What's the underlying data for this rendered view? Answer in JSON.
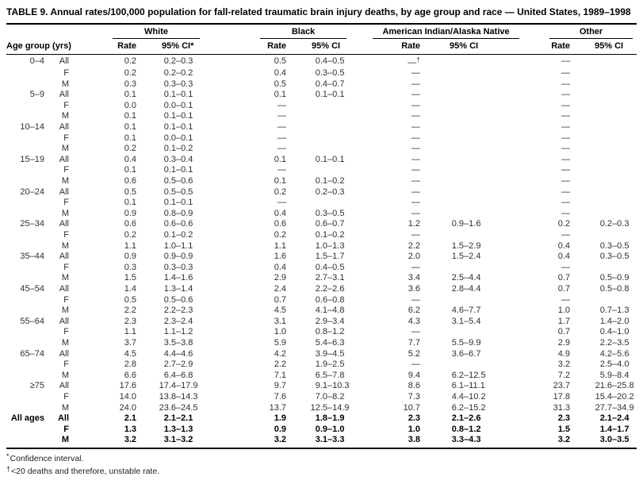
{
  "title": "TABLE 9. Annual rates/100,000 population for fall-related traumatic brain injury deaths, by age group and race — United States, 1989–1998",
  "table": {
    "row_header": "Age group (yrs)",
    "missing_symbol": "—",
    "groups": [
      {
        "id": "white",
        "label": "White",
        "rate_label": "Rate",
        "ci_label": "95% CI*"
      },
      {
        "id": "black",
        "label": "Black",
        "rate_label": "Rate",
        "ci_label": "95% CI"
      },
      {
        "id": "aian",
        "label": "American Indian/Alaska Native",
        "rate_label": "Rate",
        "ci_label": "95% CI"
      },
      {
        "id": "other",
        "label": "Other",
        "rate_label": "Rate",
        "ci_label": "95% CI"
      }
    ],
    "rows": [
      {
        "age": "0–4",
        "sex": "All",
        "white": {
          "rate": "0.2",
          "ci": "0.2–0.3"
        },
        "black": {
          "rate": "0.5",
          "ci": "0.4–0.5"
        },
        "aian": {
          "rate": "—†",
          "ci": ""
        },
        "other": {
          "rate": "—",
          "ci": ""
        }
      },
      {
        "age": "",
        "sex": "F",
        "white": {
          "rate": "0.2",
          "ci": "0.2–0.2"
        },
        "black": {
          "rate": "0.4",
          "ci": "0.3–0.5"
        },
        "aian": {
          "rate": "—",
          "ci": ""
        },
        "other": {
          "rate": "—",
          "ci": ""
        }
      },
      {
        "age": "",
        "sex": "M",
        "white": {
          "rate": "0.3",
          "ci": "0.3–0.3"
        },
        "black": {
          "rate": "0.5",
          "ci": "0.4–0.7"
        },
        "aian": {
          "rate": "—",
          "ci": ""
        },
        "other": {
          "rate": "—",
          "ci": ""
        }
      },
      {
        "age": "5–9",
        "sex": "All",
        "white": {
          "rate": "0.1",
          "ci": "0.1–0.1"
        },
        "black": {
          "rate": "0.1",
          "ci": "0.1–0.1"
        },
        "aian": {
          "rate": "—",
          "ci": ""
        },
        "other": {
          "rate": "—",
          "ci": ""
        }
      },
      {
        "age": "",
        "sex": "F",
        "white": {
          "rate": "0.0",
          "ci": "0.0–0.1"
        },
        "black": {
          "rate": "—",
          "ci": ""
        },
        "aian": {
          "rate": "—",
          "ci": ""
        },
        "other": {
          "rate": "—",
          "ci": ""
        }
      },
      {
        "age": "",
        "sex": "M",
        "white": {
          "rate": "0.1",
          "ci": "0.1–0.1"
        },
        "black": {
          "rate": "—",
          "ci": ""
        },
        "aian": {
          "rate": "—",
          "ci": ""
        },
        "other": {
          "rate": "—",
          "ci": ""
        }
      },
      {
        "age": "10–14",
        "sex": "All",
        "white": {
          "rate": "0.1",
          "ci": "0.1–0.1"
        },
        "black": {
          "rate": "—",
          "ci": ""
        },
        "aian": {
          "rate": "—",
          "ci": ""
        },
        "other": {
          "rate": "—",
          "ci": ""
        }
      },
      {
        "age": "",
        "sex": "F",
        "white": {
          "rate": "0.1",
          "ci": "0.0–0.1"
        },
        "black": {
          "rate": "—",
          "ci": ""
        },
        "aian": {
          "rate": "—",
          "ci": ""
        },
        "other": {
          "rate": "—",
          "ci": ""
        }
      },
      {
        "age": "",
        "sex": "M",
        "white": {
          "rate": "0.2",
          "ci": "0.1–0.2"
        },
        "black": {
          "rate": "—",
          "ci": ""
        },
        "aian": {
          "rate": "—",
          "ci": ""
        },
        "other": {
          "rate": "—",
          "ci": ""
        }
      },
      {
        "age": "15–19",
        "sex": "All",
        "white": {
          "rate": "0.4",
          "ci": "0.3–0.4"
        },
        "black": {
          "rate": "0.1",
          "ci": "0.1–0.1"
        },
        "aian": {
          "rate": "—",
          "ci": ""
        },
        "other": {
          "rate": "—",
          "ci": ""
        }
      },
      {
        "age": "",
        "sex": "F",
        "white": {
          "rate": "0.1",
          "ci": "0.1–0.1"
        },
        "black": {
          "rate": "—",
          "ci": ""
        },
        "aian": {
          "rate": "—",
          "ci": ""
        },
        "other": {
          "rate": "—",
          "ci": ""
        }
      },
      {
        "age": "",
        "sex": "M",
        "white": {
          "rate": "0.6",
          "ci": "0.5–0.6"
        },
        "black": {
          "rate": "0.1",
          "ci": "0.1–0.2"
        },
        "aian": {
          "rate": "—",
          "ci": ""
        },
        "other": {
          "rate": "—",
          "ci": ""
        }
      },
      {
        "age": "20–24",
        "sex": "All",
        "white": {
          "rate": "0.5",
          "ci": "0.5–0.5"
        },
        "black": {
          "rate": "0.2",
          "ci": "0.2–0.3"
        },
        "aian": {
          "rate": "—",
          "ci": ""
        },
        "other": {
          "rate": "—",
          "ci": ""
        }
      },
      {
        "age": "",
        "sex": "F",
        "white": {
          "rate": "0.1",
          "ci": "0.1–0.1"
        },
        "black": {
          "rate": "—",
          "ci": ""
        },
        "aian": {
          "rate": "—",
          "ci": ""
        },
        "other": {
          "rate": "—",
          "ci": ""
        }
      },
      {
        "age": "",
        "sex": "M",
        "white": {
          "rate": "0.9",
          "ci": "0.8–0.9"
        },
        "black": {
          "rate": "0.4",
          "ci": "0.3–0.5"
        },
        "aian": {
          "rate": "—",
          "ci": ""
        },
        "other": {
          "rate": "—",
          "ci": ""
        }
      },
      {
        "age": "25–34",
        "sex": "All",
        "white": {
          "rate": "0.6",
          "ci": "0.6–0.6"
        },
        "black": {
          "rate": "0.6",
          "ci": "0.6–0.7"
        },
        "aian": {
          "rate": "1.2",
          "ci": "0.9–1.6"
        },
        "other": {
          "rate": "0.2",
          "ci": "0.2–0.3"
        }
      },
      {
        "age": "",
        "sex": "F",
        "white": {
          "rate": "0.2",
          "ci": "0.1–0.2"
        },
        "black": {
          "rate": "0.2",
          "ci": "0.1–0.2"
        },
        "aian": {
          "rate": "—",
          "ci": ""
        },
        "other": {
          "rate": "—",
          "ci": ""
        }
      },
      {
        "age": "",
        "sex": "M",
        "white": {
          "rate": "1.1",
          "ci": "1.0–1.1"
        },
        "black": {
          "rate": "1.1",
          "ci": "1.0–1.3"
        },
        "aian": {
          "rate": "2.2",
          "ci": "1.5–2.9"
        },
        "other": {
          "rate": "0.4",
          "ci": "0.3–0.5"
        }
      },
      {
        "age": "35–44",
        "sex": "All",
        "white": {
          "rate": "0.9",
          "ci": "0.9–0.9"
        },
        "black": {
          "rate": "1.6",
          "ci": "1.5–1.7"
        },
        "aian": {
          "rate": "2.0",
          "ci": "1.5–2.4"
        },
        "other": {
          "rate": "0.4",
          "ci": "0.3–0.5"
        }
      },
      {
        "age": "",
        "sex": "F",
        "white": {
          "rate": "0.3",
          "ci": "0.3–0.3"
        },
        "black": {
          "rate": "0.4",
          "ci": "0.4–0.5"
        },
        "aian": {
          "rate": "—",
          "ci": ""
        },
        "other": {
          "rate": "—",
          "ci": ""
        }
      },
      {
        "age": "",
        "sex": "M",
        "white": {
          "rate": "1.5",
          "ci": "1.4–1.6"
        },
        "black": {
          "rate": "2.9",
          "ci": "2.7–3.1"
        },
        "aian": {
          "rate": "3.4",
          "ci": "2.5–4.4"
        },
        "other": {
          "rate": "0.7",
          "ci": "0.5–0.9"
        }
      },
      {
        "age": "45–54",
        "sex": "All",
        "white": {
          "rate": "1.4",
          "ci": "1.3–1.4"
        },
        "black": {
          "rate": "2.4",
          "ci": "2.2–2.6"
        },
        "aian": {
          "rate": "3.6",
          "ci": "2.8–4.4"
        },
        "other": {
          "rate": "0.7",
          "ci": "0.5–0.8"
        }
      },
      {
        "age": "",
        "sex": "F",
        "white": {
          "rate": "0.5",
          "ci": "0.5–0.6"
        },
        "black": {
          "rate": "0.7",
          "ci": "0.6–0.8"
        },
        "aian": {
          "rate": "—",
          "ci": ""
        },
        "other": {
          "rate": "—",
          "ci": ""
        }
      },
      {
        "age": "",
        "sex": "M",
        "white": {
          "rate": "2.2",
          "ci": "2.2–2.3"
        },
        "black": {
          "rate": "4.5",
          "ci": "4.1–4.8"
        },
        "aian": {
          "rate": "6.2",
          "ci": "4.6–7.7"
        },
        "other": {
          "rate": "1.0",
          "ci": "0.7–1.3"
        }
      },
      {
        "age": "55–64",
        "sex": "All",
        "white": {
          "rate": "2.3",
          "ci": "2.3–2.4"
        },
        "black": {
          "rate": "3.1",
          "ci": "2.9–3.4"
        },
        "aian": {
          "rate": "4.3",
          "ci": "3.1–5.4"
        },
        "other": {
          "rate": "1.7",
          "ci": "1.4–2.0"
        }
      },
      {
        "age": "",
        "sex": "F",
        "white": {
          "rate": "1.1",
          "ci": "1.1–1.2"
        },
        "black": {
          "rate": "1.0",
          "ci": "0.8–1.2"
        },
        "aian": {
          "rate": "—",
          "ci": ""
        },
        "other": {
          "rate": "0.7",
          "ci": "0.4–1.0"
        }
      },
      {
        "age": "",
        "sex": "M",
        "white": {
          "rate": "3.7",
          "ci": "3.5–3.8"
        },
        "black": {
          "rate": "5.9",
          "ci": "5.4–6.3"
        },
        "aian": {
          "rate": "7.7",
          "ci": "5.5–9.9"
        },
        "other": {
          "rate": "2.9",
          "ci": "2.2–3.5"
        }
      },
      {
        "age": "65–74",
        "sex": "All",
        "white": {
          "rate": "4.5",
          "ci": "4.4–4.6"
        },
        "black": {
          "rate": "4.2",
          "ci": "3.9–4.5"
        },
        "aian": {
          "rate": "5.2",
          "ci": "3.6–6.7"
        },
        "other": {
          "rate": "4.9",
          "ci": "4.2–5.6"
        }
      },
      {
        "age": "",
        "sex": "F",
        "white": {
          "rate": "2.8",
          "ci": "2.7–2.9"
        },
        "black": {
          "rate": "2.2",
          "ci": "1.9–2.5"
        },
        "aian": {
          "rate": "—",
          "ci": ""
        },
        "other": {
          "rate": "3.2",
          "ci": "2.5–4.0"
        }
      },
      {
        "age": "",
        "sex": "M",
        "white": {
          "rate": "6.6",
          "ci": "6.4–6.8"
        },
        "black": {
          "rate": "7.1",
          "ci": "6.5–7.8"
        },
        "aian": {
          "rate": "9.4",
          "ci": "6.2–12.5"
        },
        "other": {
          "rate": "7.2",
          "ci": "5.9–8.4"
        }
      },
      {
        "age": "≥75",
        "sex": "All",
        "white": {
          "rate": "17.6",
          "ci": "17.4–17.9"
        },
        "black": {
          "rate": "9.7",
          "ci": "9.1–10.3"
        },
        "aian": {
          "rate": "8.6",
          "ci": "6.1–11.1"
        },
        "other": {
          "rate": "23.7",
          "ci": "21.6–25.8"
        }
      },
      {
        "age": "",
        "sex": "F",
        "white": {
          "rate": "14.0",
          "ci": "13.8–14.3"
        },
        "black": {
          "rate": "7.6",
          "ci": "7.0–8.2"
        },
        "aian": {
          "rate": "7.3",
          "ci": "4.4–10.2"
        },
        "other": {
          "rate": "17.8",
          "ci": "15.4–20.2"
        }
      },
      {
        "age": "",
        "sex": "M",
        "white": {
          "rate": "24.0",
          "ci": "23.6–24.5"
        },
        "black": {
          "rate": "13.7",
          "ci": "12.5–14.9"
        },
        "aian": {
          "rate": "10.7",
          "ci": "6.2–15.2"
        },
        "other": {
          "rate": "31.3",
          "ci": "27.7–34.9"
        }
      },
      {
        "age": "All ages",
        "sex": "All",
        "bold": true,
        "white": {
          "rate": "2.1",
          "ci": "2.1–2.1"
        },
        "black": {
          "rate": "1.9",
          "ci": "1.8–1.9"
        },
        "aian": {
          "rate": "2.3",
          "ci": "2.1–2.6"
        },
        "other": {
          "rate": "2.3",
          "ci": "2.1–2.4"
        }
      },
      {
        "age": "",
        "sex": "F",
        "bold": true,
        "white": {
          "rate": "1.3",
          "ci": "1.3–1.3"
        },
        "black": {
          "rate": "0.9",
          "ci": "0.9–1.0"
        },
        "aian": {
          "rate": "1.0",
          "ci": "0.8–1.2"
        },
        "other": {
          "rate": "1.5",
          "ci": "1.4–1.7"
        }
      },
      {
        "age": "",
        "sex": "M",
        "bold": true,
        "white": {
          "rate": "3.2",
          "ci": "3.1–3.2"
        },
        "black": {
          "rate": "3.2",
          "ci": "3.1–3.3"
        },
        "aian": {
          "rate": "3.8",
          "ci": "3.3–4.3"
        },
        "other": {
          "rate": "3.2",
          "ci": "3.0–3.5"
        }
      }
    ]
  },
  "footnotes": [
    {
      "marker": "*",
      "text": "Confidence interval."
    },
    {
      "marker": "†",
      "text": "<20 deaths and therefore, unstable rate."
    }
  ]
}
